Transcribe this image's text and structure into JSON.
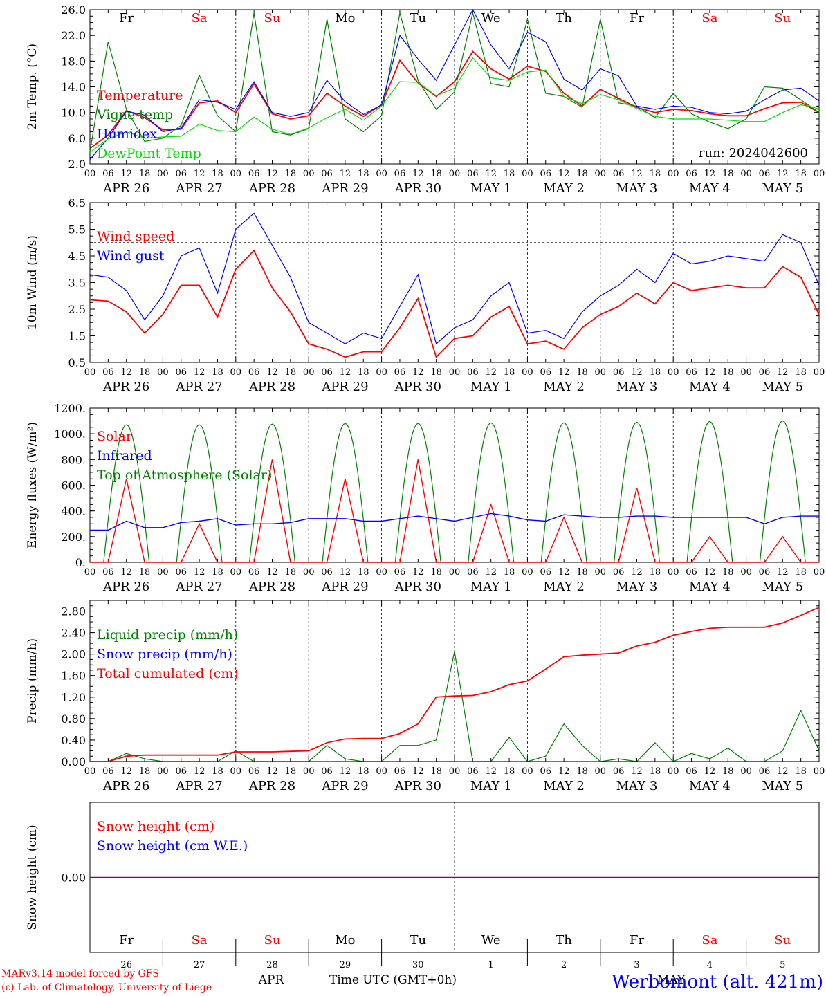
{
  "run_label": "run: 2024042600",
  "station": "Werbomont (alt. 421m)",
  "credit_line1": "MARv3.14 model forced by GFS",
  "credit_line2": "(c) Lab. of Climatology, University of Liege",
  "time_axis_label": "Time UTC (GMT+0h)",
  "month_left": "APR",
  "month_right": "MAY",
  "hour_ticks": [
    "00",
    "06",
    "12",
    "18"
  ],
  "days": [
    {
      "dow": "Fr",
      "label": "APR 26",
      "num": "26",
      "weekend": false
    },
    {
      "dow": "Sa",
      "label": "APR 27",
      "num": "27",
      "weekend": true
    },
    {
      "dow": "Su",
      "label": "APR 28",
      "num": "28",
      "weekend": true
    },
    {
      "dow": "Mo",
      "label": "APR 29",
      "num": "29",
      "weekend": false
    },
    {
      "dow": "Tu",
      "label": "APR 30",
      "num": "30",
      "weekend": false
    },
    {
      "dow": "We",
      "label": "MAY  1",
      "num": "1",
      "weekend": false
    },
    {
      "dow": "Th",
      "label": "MAY  2",
      "num": "2",
      "weekend": false
    },
    {
      "dow": "Fr",
      "label": "MAY  3",
      "num": "3",
      "weekend": false
    },
    {
      "dow": "Sa",
      "label": "MAY  4",
      "num": "4",
      "weekend": true
    },
    {
      "dow": "Su",
      "label": "MAY  5",
      "num": "5",
      "weekend": true
    }
  ],
  "colors": {
    "red": "#ff0000",
    "green": "#008000",
    "blue": "#0000ff",
    "lightgreen": "#00e000",
    "purple": "#800080",
    "weekend": "#ff0000",
    "weekday": "#000000"
  },
  "chart_data": [
    {
      "type": "line",
      "ylabel": "2m Temp. (°C)",
      "ylim": [
        2,
        26
      ],
      "yticks": [
        "2.0",
        "6.0",
        "10.0",
        "14.0",
        "18.0",
        "22.0",
        "26.0"
      ],
      "x_hours": [
        0,
        6,
        12,
        18,
        24,
        30,
        36,
        42,
        48,
        54,
        60,
        66,
        72,
        78,
        84,
        90,
        96,
        102,
        108,
        114,
        120,
        126,
        132,
        138,
        144,
        150,
        156,
        162,
        168,
        174,
        180,
        186,
        192,
        198,
        204,
        210,
        216,
        222,
        228,
        234,
        240
      ],
      "series": [
        {
          "name": "Temperature",
          "color": "red",
          "values": [
            4.4,
            6.5,
            10.3,
            9.2,
            7.3,
            7.4,
            11.5,
            11.8,
            10.0,
            14.5,
            9.8,
            9.0,
            9.5,
            13.0,
            11.0,
            9.4,
            11.2,
            18.1,
            14.6,
            12.5,
            14.8,
            19.5,
            16.8,
            15.2,
            17.2,
            16.4,
            13.0,
            11.0,
            13.6,
            12.2,
            10.8,
            10.0,
            10.5,
            10.3,
            9.8,
            9.5,
            9.5,
            10.6,
            11.5,
            11.6,
            10.0
          ]
        },
        {
          "name": "Vigne temp",
          "color": "green",
          "values": [
            3.9,
            21.0,
            10.5,
            5.5,
            6.0,
            8.0,
            15.8,
            9.5,
            7.0,
            25.5,
            7.0,
            6.5,
            7.5,
            24.5,
            9.0,
            7.0,
            9.5,
            25.5,
            15.0,
            10.5,
            13.2,
            25.5,
            14.5,
            14.0,
            24.5,
            13.0,
            12.5,
            10.8,
            24.5,
            11.5,
            11.0,
            9.2,
            13.0,
            9.8,
            8.5,
            7.5,
            9.0,
            14.0,
            13.8,
            12.0,
            10.0
          ]
        },
        {
          "name": "Humidex",
          "color": "blue",
          "values": [
            2.7,
            6.0,
            10.2,
            9.6,
            7.0,
            7.6,
            12.0,
            11.6,
            10.5,
            14.8,
            10.0,
            9.4,
            10.0,
            15.0,
            11.7,
            9.7,
            11.2,
            22.0,
            18.3,
            15.0,
            20.5,
            26.0,
            20.5,
            16.8,
            22.5,
            21.0,
            15.2,
            13.5,
            16.8,
            15.7,
            11.0,
            10.5,
            11.0,
            10.8,
            10.0,
            9.8,
            10.2,
            12.0,
            13.5,
            13.8,
            11.8
          ]
        },
        {
          "name": "DewPoint Temp",
          "color": "lightgreen",
          "values": [
            3.8,
            5.9,
            7.0,
            6.0,
            6.2,
            6.3,
            8.2,
            7.2,
            7.0,
            9.3,
            7.4,
            6.6,
            7.6,
            9.2,
            10.5,
            8.8,
            11.0,
            14.8,
            14.7,
            12.6,
            13.8,
            18.5,
            15.4,
            15.0,
            16.3,
            16.6,
            12.5,
            11.4,
            12.8,
            12.0,
            10.6,
            9.4,
            9.0,
            9.0,
            9.0,
            8.8,
            8.6,
            8.6,
            10.0,
            11.2,
            10.6
          ]
        }
      ]
    },
    {
      "type": "line",
      "ylabel": "10m Wind (m/s)",
      "ylim": [
        0.5,
        6.5
      ],
      "yticks": [
        "0.5",
        "1.5",
        "2.5",
        "3.5",
        "4.5",
        "5.5",
        "6.5"
      ],
      "reference_line": 5.0,
      "x_hours": [
        0,
        6,
        12,
        18,
        24,
        30,
        36,
        42,
        48,
        54,
        60,
        66,
        72,
        78,
        84,
        90,
        96,
        102,
        108,
        114,
        120,
        126,
        132,
        138,
        144,
        150,
        156,
        162,
        168,
        174,
        180,
        186,
        192,
        198,
        204,
        210,
        216,
        222,
        228,
        234,
        240
      ],
      "series": [
        {
          "name": "Wind speed",
          "color": "red",
          "values": [
            2.85,
            2.8,
            2.4,
            1.6,
            2.3,
            3.4,
            3.4,
            2.2,
            4.0,
            4.7,
            3.3,
            2.4,
            1.2,
            1.0,
            0.7,
            0.9,
            0.9,
            1.8,
            2.9,
            0.7,
            1.4,
            1.5,
            2.2,
            2.6,
            1.2,
            1.3,
            1.0,
            1.8,
            2.3,
            2.6,
            3.1,
            2.7,
            3.5,
            3.2,
            3.3,
            3.4,
            3.3,
            3.3,
            4.1,
            3.7,
            2.3
          ]
        },
        {
          "name": "Wind gust",
          "color": "blue",
          "values": [
            3.8,
            3.7,
            3.2,
            2.1,
            3.0,
            4.5,
            4.8,
            3.1,
            5.5,
            6.1,
            4.9,
            3.7,
            2.0,
            1.6,
            1.2,
            1.6,
            1.4,
            2.6,
            3.8,
            1.2,
            1.8,
            2.1,
            3.0,
            3.5,
            1.6,
            1.7,
            1.4,
            2.4,
            3.0,
            3.4,
            4.0,
            3.5,
            4.6,
            4.2,
            4.3,
            4.5,
            4.4,
            4.3,
            5.3,
            5.0,
            3.4
          ]
        }
      ]
    },
    {
      "type": "line",
      "ylabel": "Energy fluxes (W/m²)",
      "ylim": [
        0,
        1200
      ],
      "yticks": [
        "0.",
        "200.",
        "400.",
        "600.",
        "800.",
        "1000.",
        "1200."
      ],
      "x_hours": [
        0,
        6,
        12,
        18,
        24,
        30,
        36,
        42,
        48,
        54,
        60,
        66,
        72,
        78,
        84,
        90,
        96,
        102,
        108,
        114,
        120,
        126,
        132,
        138,
        144,
        150,
        156,
        162,
        168,
        174,
        180,
        186,
        192,
        198,
        204,
        210,
        216,
        222,
        228,
        234,
        240
      ],
      "series": [
        {
          "name": "Solar",
          "color": "red",
          "values": [
            0,
            0,
            650,
            0,
            0,
            0,
            300,
            0,
            0,
            0,
            800,
            0,
            0,
            0,
            650,
            0,
            0,
            0,
            800,
            0,
            0,
            0,
            450,
            0,
            0,
            0,
            350,
            0,
            0,
            0,
            580,
            0,
            0,
            0,
            200,
            0,
            0,
            0,
            200,
            0,
            0
          ]
        },
        {
          "name": "Infrared",
          "color": "blue",
          "values": [
            250,
            250,
            320,
            270,
            270,
            310,
            320,
            340,
            290,
            300,
            300,
            310,
            340,
            340,
            340,
            320,
            320,
            340,
            360,
            340,
            320,
            350,
            380,
            360,
            330,
            320,
            370,
            360,
            350,
            350,
            360,
            360,
            350,
            350,
            350,
            350,
            350,
            300,
            350,
            360,
            360
          ]
        },
        {
          "name": "Top of Atmosphere (Solar)",
          "color": "green",
          "days_peak": [
            1070,
            1070,
            1075,
            1080,
            1080,
            1085,
            1085,
            1090,
            1095,
            1100
          ],
          "sunrise_hour": 4.5,
          "sunset_hour": 19.5
        }
      ]
    },
    {
      "type": "line",
      "ylabel": "Precip (mm/h)",
      "ylim": [
        0,
        3.0
      ],
      "yticks": [
        "0.00",
        "0.40",
        "0.80",
        "1.20",
        "1.60",
        "2.00",
        "2.40",
        "2.80"
      ],
      "x_hours": [
        0,
        6,
        12,
        18,
        24,
        30,
        36,
        42,
        48,
        54,
        60,
        66,
        72,
        78,
        84,
        90,
        96,
        102,
        108,
        114,
        120,
        126,
        132,
        138,
        144,
        150,
        156,
        162,
        168,
        174,
        180,
        186,
        192,
        198,
        204,
        210,
        216,
        222,
        228,
        234,
        240
      ],
      "series": [
        {
          "name": "Liquid precip (mm/h)",
          "color": "green",
          "values": [
            0,
            0,
            0.15,
            0.05,
            0,
            0,
            0,
            0,
            0.2,
            0,
            0,
            0,
            0,
            0.3,
            0.05,
            0,
            0,
            0.3,
            0.3,
            0.4,
            2.05,
            0,
            0,
            0.45,
            0,
            0.1,
            0.7,
            0.3,
            0,
            0.05,
            0,
            0.35,
            0,
            0.15,
            0.05,
            0.25,
            0,
            0,
            0.2,
            0.95,
            0.2
          ]
        },
        {
          "name": "Snow precip (mm/h)",
          "color": "blue",
          "values": [
            0,
            0,
            0,
            0,
            0,
            0,
            0,
            0,
            0,
            0,
            0,
            0,
            0,
            0,
            0,
            0,
            0,
            0,
            0,
            0,
            0,
            0,
            0,
            0,
            0,
            0,
            0,
            0,
            0,
            0,
            0,
            0,
            0,
            0,
            0,
            0,
            0,
            0,
            0,
            0,
            0
          ]
        },
        {
          "name": "Total cumulated (cm)",
          "color": "red",
          "values": [
            0,
            0,
            0.1,
            0.12,
            0.12,
            0.12,
            0.12,
            0.12,
            0.18,
            0.18,
            0.18,
            0.19,
            0.2,
            0.35,
            0.42,
            0.43,
            0.43,
            0.52,
            0.7,
            1.2,
            1.22,
            1.23,
            1.3,
            1.43,
            1.5,
            1.72,
            1.95,
            1.98,
            2.0,
            2.02,
            2.15,
            2.22,
            2.35,
            2.42,
            2.48,
            2.5,
            2.5,
            2.5,
            2.58,
            2.72,
            2.87
          ]
        }
      ]
    },
    {
      "type": "line",
      "ylabel": "Snow height (cm)",
      "yticks": [
        "0.00"
      ],
      "series": [
        {
          "name": "Snow height (cm)",
          "color": "red",
          "values": [
            0,
            0
          ]
        },
        {
          "name": "Snow height (cm W.E.)",
          "color": "blue",
          "values": [
            0,
            0
          ]
        }
      ]
    }
  ]
}
